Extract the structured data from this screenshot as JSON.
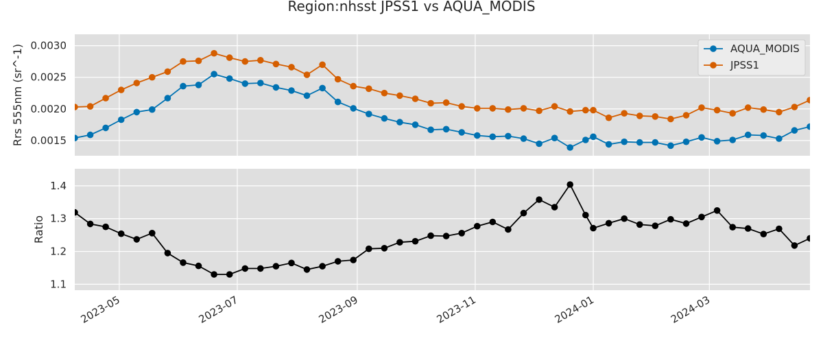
{
  "chart_data": {
    "title": "Region:nhsst JPSS1 vs AQUA_MODIS",
    "type": "line",
    "colors": {
      "AQUA_MODIS": "#0072b2",
      "JPSS1": "#d55e00",
      "Ratio": "#000000",
      "plot_background": "#dfdfdf",
      "grid": "#ffffff"
    },
    "x_ticks": [
      "2023-05",
      "2023-07",
      "2023-09",
      "2023-11",
      "2024-01",
      "2024-03"
    ],
    "x": [
      "2023-04-08",
      "2023-04-16",
      "2023-04-24",
      "2023-05-02",
      "2023-05-10",
      "2023-05-18",
      "2023-05-26",
      "2023-06-03",
      "2023-06-11",
      "2023-06-19",
      "2023-06-27",
      "2023-07-05",
      "2023-07-13",
      "2023-07-21",
      "2023-07-29",
      "2023-08-06",
      "2023-08-14",
      "2023-08-22",
      "2023-08-30",
      "2023-09-07",
      "2023-09-15",
      "2023-09-23",
      "2023-10-01",
      "2023-10-09",
      "2023-10-17",
      "2023-10-25",
      "2023-11-02",
      "2023-11-10",
      "2023-11-18",
      "2023-11-26",
      "2023-12-04",
      "2023-12-12",
      "2023-12-20",
      "2023-12-28",
      "2024-01-01",
      "2024-01-09",
      "2024-01-17",
      "2024-01-25",
      "2024-02-02",
      "2024-02-10",
      "2024-02-18",
      "2024-02-26",
      "2024-03-05",
      "2024-03-13",
      "2024-03-21",
      "2024-03-29",
      "2024-04-06",
      "2024-04-14",
      "2024-04-22"
    ],
    "panels": [
      {
        "ylabel": "Rrs 555nm (sr^-1)",
        "ylim": [
          0.00126,
          0.00318
        ],
        "yticks": [
          0.0015,
          0.002,
          0.0025,
          0.003
        ],
        "ytick_labels": [
          "0.0015",
          "0.0020",
          "0.0025",
          "0.0030"
        ],
        "legend": "top-right",
        "series": [
          {
            "name": "AQUA_MODIS",
            "values": [
              0.00154,
              0.00159,
              0.0017,
              0.00183,
              0.00195,
              0.00199,
              0.00217,
              0.00236,
              0.00238,
              0.00255,
              0.00248,
              0.0024,
              0.00241,
              0.00234,
              0.00229,
              0.00221,
              0.00233,
              0.00211,
              0.00201,
              0.00192,
              0.00185,
              0.00179,
              0.00175,
              0.00167,
              0.00168,
              0.00163,
              0.00158,
              0.00156,
              0.00157,
              0.00153,
              0.00145,
              0.00154,
              0.00139,
              0.00151,
              0.00156,
              0.00144,
              0.00148,
              0.00147,
              0.00147,
              0.00142,
              0.00148,
              0.00155,
              0.00149,
              0.00151,
              0.00159,
              0.00158,
              0.00153,
              0.00166,
              0.00172
            ]
          },
          {
            "name": "JPSS1",
            "values": [
              0.00203,
              0.00204,
              0.00217,
              0.0023,
              0.00241,
              0.0025,
              0.00259,
              0.00275,
              0.00276,
              0.00288,
              0.00281,
              0.00275,
              0.00277,
              0.00271,
              0.00266,
              0.00254,
              0.0027,
              0.00247,
              0.00236,
              0.00232,
              0.00225,
              0.00221,
              0.00216,
              0.00209,
              0.0021,
              0.00204,
              0.00201,
              0.00201,
              0.00199,
              0.00201,
              0.00197,
              0.00204,
              0.00196,
              0.00198,
              0.00198,
              0.00186,
              0.00193,
              0.00189,
              0.00188,
              0.00184,
              0.0019,
              0.00202,
              0.00198,
              0.00193,
              0.00202,
              0.00199,
              0.00195,
              0.00203,
              0.00214
            ]
          }
        ]
      },
      {
        "ylabel": "Ratio",
        "ylim": [
          1.082,
          1.452
        ],
        "yticks": [
          1.1,
          1.2,
          1.3,
          1.4
        ],
        "ytick_labels": [
          "1.1",
          "1.2",
          "1.3",
          "1.4"
        ],
        "series": [
          {
            "name": "Ratio",
            "values": [
              1.319,
              1.284,
              1.275,
              1.254,
              1.237,
              1.256,
              1.195,
              1.166,
              1.156,
              1.13,
              1.13,
              1.148,
              1.148,
              1.155,
              1.165,
              1.145,
              1.155,
              1.17,
              1.174,
              1.208,
              1.21,
              1.228,
              1.231,
              1.248,
              1.247,
              1.256,
              1.277,
              1.29,
              1.267,
              1.317,
              1.358,
              1.335,
              1.404,
              1.311,
              1.271,
              1.286,
              1.3,
              1.282,
              1.278,
              1.298,
              1.285,
              1.305,
              1.325,
              1.274,
              1.27,
              1.253,
              1.269,
              1.218,
              1.24
            ]
          }
        ]
      }
    ]
  }
}
